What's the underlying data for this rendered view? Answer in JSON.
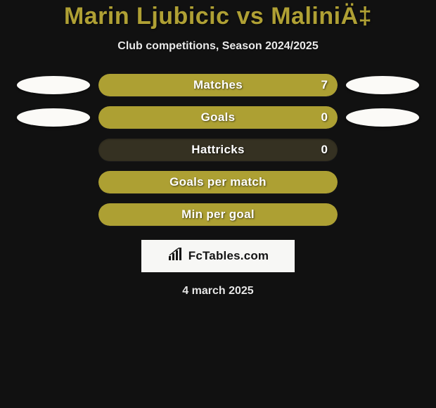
{
  "colors": {
    "page_bg": "#111111",
    "title_color": "#afa034",
    "subtitle_color": "#e9e9e9",
    "bar_track": "#353122",
    "bar_fill": "#ada033",
    "bar_text": "#ffffff",
    "avatar_fill": "#fbfaf7",
    "logo_bg": "#f7f7f5",
    "logo_text": "#141414",
    "date_color": "#e6e6e6"
  },
  "typography": {
    "title_fontsize": 34,
    "subtitle_fontsize": 16,
    "bar_label_fontsize": 17,
    "logo_fontsize": 17,
    "date_fontsize": 16
  },
  "header": {
    "title": "Marin Ljubicic vs MaliniÄ‡",
    "subtitle": "Club competitions, Season 2024/2025"
  },
  "avatars": {
    "left_rows": [
      true,
      true,
      false,
      false,
      false
    ],
    "right_rows": [
      true,
      true,
      false,
      false,
      false
    ]
  },
  "stats": [
    {
      "label": "Matches",
      "value": "7",
      "fill_pct": 100,
      "show_value": true
    },
    {
      "label": "Goals",
      "value": "0",
      "fill_pct": 100,
      "show_value": true
    },
    {
      "label": "Hattricks",
      "value": "0",
      "fill_pct": 0,
      "show_value": true
    },
    {
      "label": "Goals per match",
      "value": "",
      "fill_pct": 100,
      "show_value": false
    },
    {
      "label": "Min per goal",
      "value": "",
      "fill_pct": 100,
      "show_value": false
    }
  ],
  "logo": {
    "text": "FcTables.com"
  },
  "footer": {
    "date": "4 march 2025"
  }
}
